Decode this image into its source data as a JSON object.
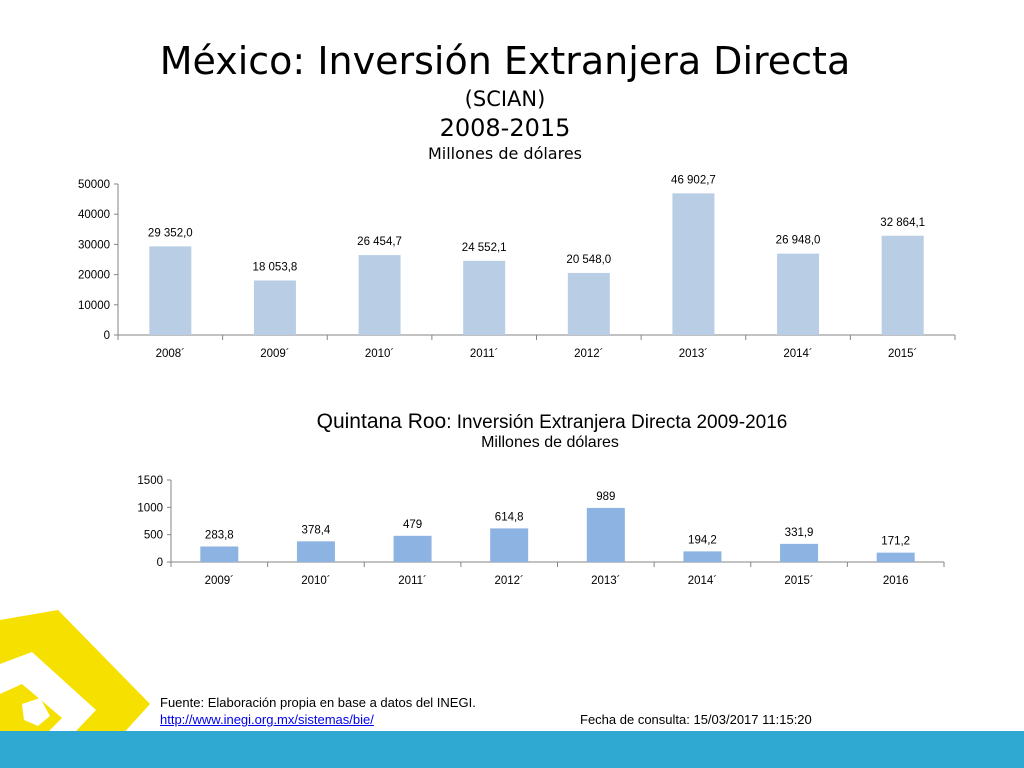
{
  "header": {
    "title": "México: Inversión Extranjera Directa",
    "subtitle": "(SCIAN)",
    "years": "2008-2015",
    "units": "Millones de dólares"
  },
  "chart2_header": {
    "title_bold": "Quintana Roo",
    "title_rest": ": Inversión Extranjera Directa 2009-2016",
    "units": "Millones de dólares"
  },
  "chart_data": [
    {
      "type": "bar",
      "title": "México: Inversión Extranjera Directa",
      "categories": [
        "2008´",
        "2009´",
        "2010´",
        "2011´",
        "2012´",
        "2013´",
        "2014´",
        "2015´"
      ],
      "values": [
        29352.0,
        18053.8,
        26454.7,
        24552.1,
        20548.0,
        46902.7,
        26948.0,
        32864.1
      ],
      "value_labels": [
        "29 352,0",
        "18 053,8",
        "26 454,7",
        "24 552,1",
        "20 548,0",
        "46 902,7",
        "26 948,0",
        "32 864,1"
      ],
      "yticks": [
        "0",
        "10000",
        "20000",
        "30000",
        "40000",
        "50000"
      ],
      "ylim": [
        0,
        50000
      ],
      "ylabel": "Millones de dólares",
      "color": "#b9cde5"
    },
    {
      "type": "bar",
      "title": "Quintana Roo: Inversión Extranjera Directa 2009-2016",
      "categories": [
        "2009´",
        "2010´",
        "2011´",
        "2012´",
        "2013´",
        "2014´",
        "2015´",
        "2016"
      ],
      "values": [
        283.8,
        378.4,
        479,
        614.8,
        989,
        194.2,
        331.9,
        171.2
      ],
      "value_labels": [
        "283,8",
        "378,4",
        "479",
        "614,8",
        "989",
        "194,2",
        "331,9",
        "171,2"
      ],
      "yticks": [
        "0",
        "500",
        "1000",
        "1500"
      ],
      "ylim": [
        0,
        1500
      ],
      "ylabel": "Millones de dólares",
      "color": "#8db3e2"
    }
  ],
  "footer": {
    "source": "Fuente: Elaboración propia en base a datos del INEGI.",
    "link": "http://www.inegi.org.mx/sistemas/bie/",
    "fecha": "Fecha de consulta: 15/03/2017 11:15:20"
  },
  "colors": {
    "footer_band": "#2fa9d1",
    "logo_yellow": "#f6e000"
  }
}
